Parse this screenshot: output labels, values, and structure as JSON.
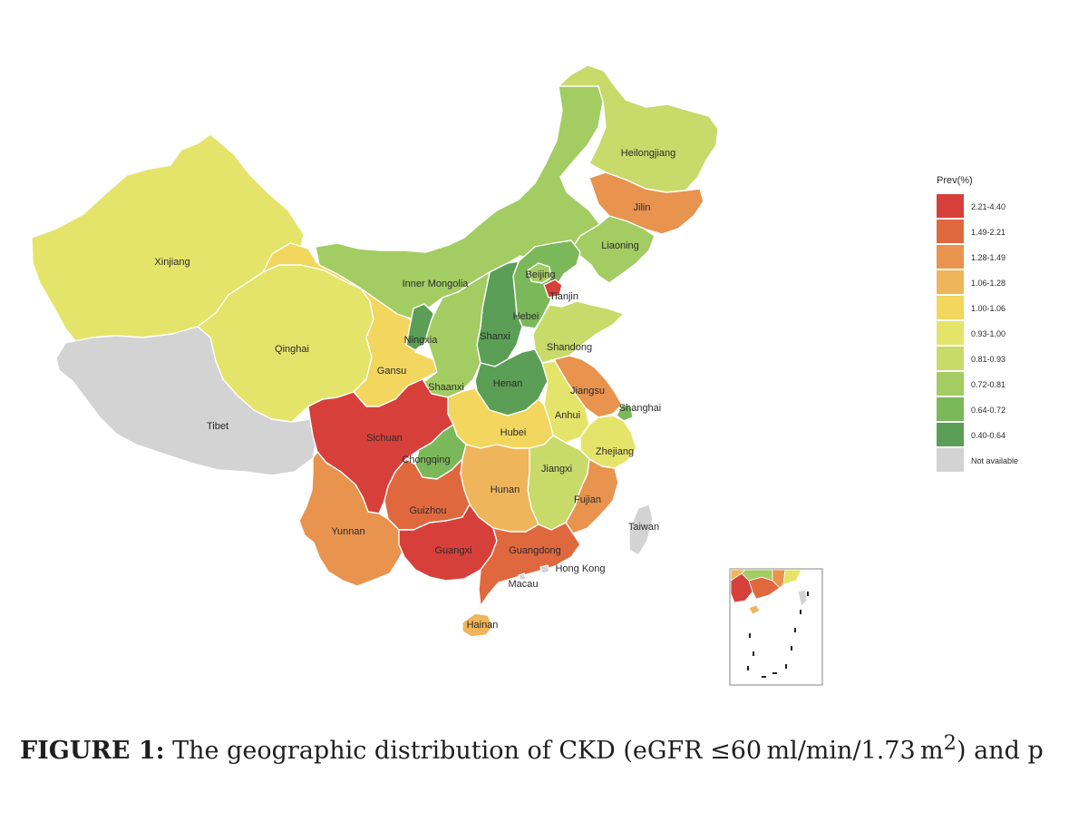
{
  "map": {
    "legend": {
      "title": "Prev(%)",
      "classes": [
        {
          "label": "2.21-4.40",
          "color": "#d7403a"
        },
        {
          "label": "1.49-2.21",
          "color": "#e0683f"
        },
        {
          "label": "1.28-1.49",
          "color": "#e8934e"
        },
        {
          "label": "1.06-1.28",
          "color": "#efb55a"
        },
        {
          "label": "1.00-1.06",
          "color": "#f2d65e"
        },
        {
          "label": "0.93-1.00",
          "color": "#e5e46a"
        },
        {
          "label": "0.81-0.93",
          "color": "#c7da6a"
        },
        {
          "label": "0.72-0.81",
          "color": "#a3cc63"
        },
        {
          "label": "0.64-0.72",
          "color": "#7bb85a"
        },
        {
          "label": "0.40-0.64",
          "color": "#5b9e55"
        },
        {
          "label": "Not available",
          "color": "#d3d3d3"
        }
      ]
    },
    "regions": [
      {
        "name": "Xinjiang",
        "class": "0.93-1.00"
      },
      {
        "name": "Tibet",
        "class": "Not available"
      },
      {
        "name": "Qinghai",
        "class": "0.93-1.00"
      },
      {
        "name": "Gansu",
        "class": "1.00-1.06"
      },
      {
        "name": "Inner Mongolia",
        "class": "0.72-0.81"
      },
      {
        "name": "Ningxia",
        "class": "0.40-0.64"
      },
      {
        "name": "Heilongjiang",
        "class": "0.81-0.93"
      },
      {
        "name": "Jilin",
        "class": "1.28-1.49"
      },
      {
        "name": "Liaoning",
        "class": "0.72-0.81"
      },
      {
        "name": "Beijing",
        "class": "0.72-0.81"
      },
      {
        "name": "Tianjin",
        "class": "2.21-4.40"
      },
      {
        "name": "Hebei",
        "class": "0.64-0.72"
      },
      {
        "name": "Shanxi",
        "class": "0.40-0.64"
      },
      {
        "name": "Shandong",
        "class": "0.81-0.93"
      },
      {
        "name": "Shaanxi",
        "class": "0.72-0.81"
      },
      {
        "name": "Henan",
        "class": "0.40-0.64"
      },
      {
        "name": "Jiangsu",
        "class": "1.28-1.49"
      },
      {
        "name": "Shanghai",
        "class": "0.64-0.72"
      },
      {
        "name": "Anhui",
        "class": "0.93-1.00"
      },
      {
        "name": "Hubei",
        "class": "1.00-1.06"
      },
      {
        "name": "Sichuan",
        "class": "2.21-4.40"
      },
      {
        "name": "Chongqing",
        "class": "0.64-0.72"
      },
      {
        "name": "Zhejiang",
        "class": "0.93-1.00"
      },
      {
        "name": "Jiangxi",
        "class": "0.81-0.93"
      },
      {
        "name": "Hunan",
        "class": "1.06-1.28"
      },
      {
        "name": "Guizhou",
        "class": "1.49-2.21"
      },
      {
        "name": "Fujian",
        "class": "1.28-1.49"
      },
      {
        "name": "Yunnan",
        "class": "1.28-1.49"
      },
      {
        "name": "Guangxi",
        "class": "2.21-4.40"
      },
      {
        "name": "Guangdong",
        "class": "1.49-2.21"
      },
      {
        "name": "Hainan",
        "class": "1.06-1.28"
      },
      {
        "name": "Taiwan",
        "class": "Not available"
      },
      {
        "name": "Hong Kong",
        "class": "Not available"
      },
      {
        "name": "Macau",
        "class": "Not available"
      }
    ]
  },
  "caption": {
    "label": "FIGURE 1:",
    "text_before_sup": " The geographic distribution of CKD (eGFR ≤60 ml/min/1.73 m",
    "sup": "2",
    "text_after_sup": ") and p"
  }
}
